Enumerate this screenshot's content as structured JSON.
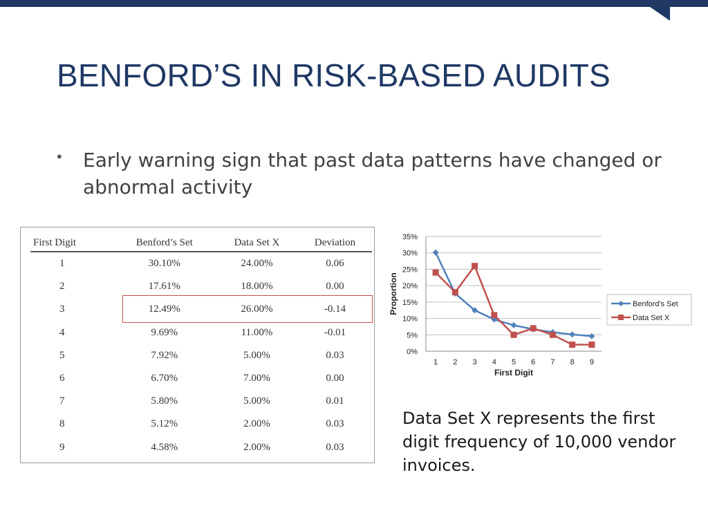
{
  "slide": {
    "title": "BENFORD’S IN RISK-BASED AUDITS",
    "bullet_symbol": "•",
    "bullet": "Early warning sign that past data patterns have changed or abnormal activity",
    "caption": "Data Set X represents the first digit frequency of 10,000 vendor invoices.",
    "colors": {
      "title": "#1f3864",
      "bar": "#1f3864",
      "highlight": "#c0504d"
    }
  },
  "table": {
    "headers": [
      "First Digit",
      "Benford’s Set",
      "Data Set X",
      "Deviation"
    ],
    "rows": [
      [
        "1",
        "30.10%",
        "24.00%",
        "0.06"
      ],
      [
        "2",
        "17.61%",
        "18.00%",
        "0.00"
      ],
      [
        "3",
        "12.49%",
        "26.00%",
        "-0.14"
      ],
      [
        "4",
        "9.69%",
        "11.00%",
        "-0.01"
      ],
      [
        "5",
        "7.92%",
        "5.00%",
        "0.03"
      ],
      [
        "6",
        "6.70%",
        "7.00%",
        "0.00"
      ],
      [
        "7",
        "5.80%",
        "5.00%",
        "0.01"
      ],
      [
        "8",
        "5.12%",
        "2.00%",
        "0.03"
      ],
      [
        "9",
        "4.58%",
        "2.00%",
        "0.03"
      ]
    ],
    "highlighted_row": 3
  },
  "chart_data": {
    "type": "line",
    "x": [
      1,
      2,
      3,
      4,
      5,
      6,
      7,
      8,
      9
    ],
    "series": [
      {
        "name": "Benford's Set",
        "values": [
          30.1,
          17.61,
          12.49,
          9.69,
          7.92,
          6.7,
          5.8,
          5.12,
          4.58
        ],
        "color": "#4f81bd",
        "marker": "diamond"
      },
      {
        "name": "Data  Set X",
        "values": [
          24.0,
          18.0,
          26.0,
          11.0,
          5.0,
          7.0,
          5.0,
          2.0,
          2.0
        ],
        "color": "#c0504d",
        "marker": "square"
      }
    ],
    "xlabel": "First Digit",
    "ylabel": "Proportion",
    "ylim": [
      0,
      35
    ],
    "yticks": [
      "0%",
      "5%",
      "10%",
      "15%",
      "20%",
      "25%",
      "30%",
      "35%"
    ],
    "xticks": [
      "1",
      "2",
      "3",
      "4",
      "5",
      "6",
      "7",
      "8",
      "9"
    ],
    "grid": true,
    "legend": "right"
  }
}
